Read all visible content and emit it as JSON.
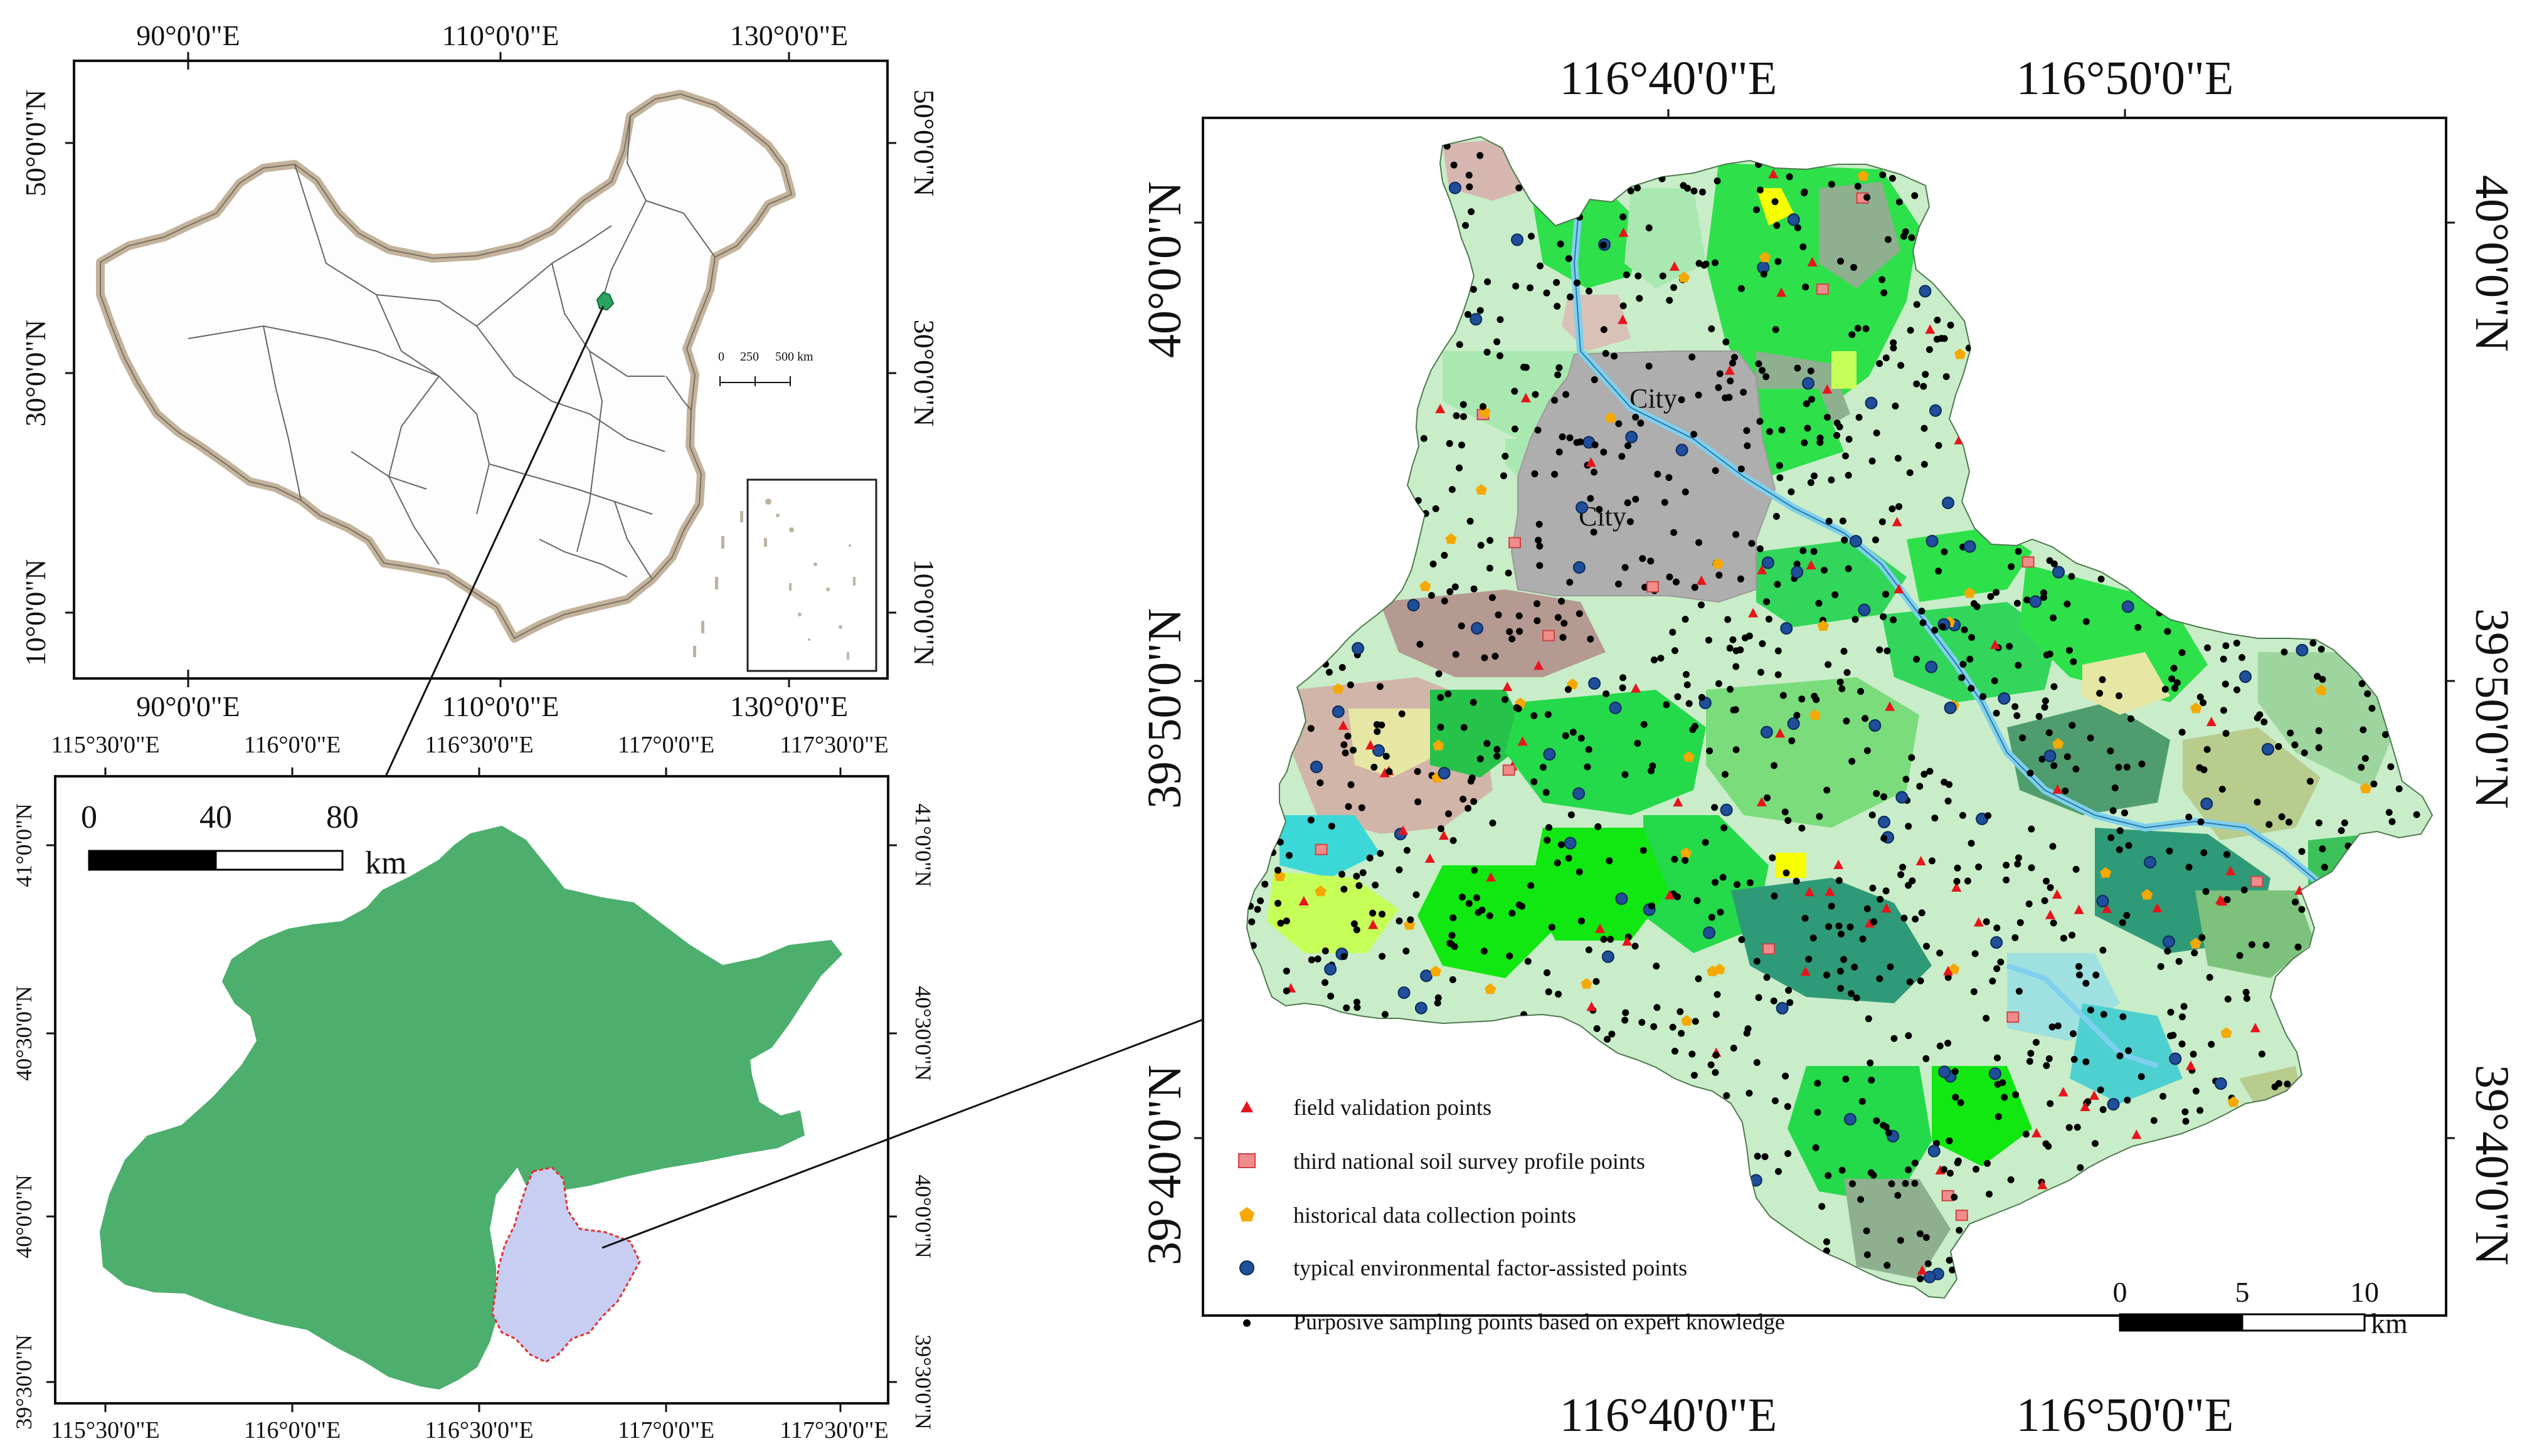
{
  "china_map": {
    "top_lon_labels": [
      "90°0'0\"E",
      "110°0'0\"E",
      "130°0'0\"E"
    ],
    "bottom_lon_labels": [
      "90°0'0\"E",
      "110°0'0\"E",
      "130°0'0\"E"
    ],
    "left_lat_labels": [
      "50°0'0\"N",
      "30°0'0\"N",
      "10°0'0\"N"
    ],
    "right_lat_labels": [
      "50°0'0\"N",
      "30°0'0\"N",
      "10°0'0\"N"
    ],
    "scale_ticks": [
      "0",
      "250",
      "500 km"
    ]
  },
  "beijing_map": {
    "top_lon_labels": [
      "115°30'0\"E",
      "116°0'0\"E",
      "116°30'0\"E",
      "117°0'0\"E",
      "117°30'0\"E"
    ],
    "bottom_lon_labels": [
      "115°30'0\"E",
      "116°0'0\"E",
      "116°30'0\"E",
      "117°0'0\"E",
      "117°30'0\"E"
    ],
    "left_lat_labels": [
      "41°0'0\"N",
      "40°30'0\"N",
      "40°0'0\"N",
      "39°30'0\"N"
    ],
    "right_lat_labels": [
      "41°0'0\"N",
      "40°30'0\"N",
      "40°0'0\"N",
      "39°30'0\"N"
    ],
    "scale_ticks": [
      "0",
      "40",
      "80"
    ],
    "scale_unit": "km"
  },
  "study_map": {
    "top_lon_labels": [
      "116°40'0\"E",
      "116°50'0\"E"
    ],
    "bottom_lon_labels": [
      "116°40'0\"E",
      "116°50'0\"E"
    ],
    "left_lat_labels": [
      "40°0'0\"N",
      "39°50'0\"N",
      "39°40'0\"N"
    ],
    "right_lat_labels": [
      "40°0'0\"N",
      "39°50'0\"N",
      "39°40'0\"N"
    ],
    "city_labels": [
      "City",
      "City"
    ],
    "scale_ticks": [
      "0",
      "5",
      "10"
    ],
    "scale_unit": "km",
    "legend": [
      {
        "label": "field validation points",
        "symbol": "triangle",
        "color": "#e8141b"
      },
      {
        "label": "third national soil survey profile points",
        "symbol": "square",
        "color": "#f08c8c"
      },
      {
        "label": "historical data collection points",
        "symbol": "pentagon",
        "color": "#f5a800"
      },
      {
        "label": "typical environmental factor-assisted points",
        "symbol": "circle",
        "color": "#1f4e9a"
      },
      {
        "label": "Purposive sampling points based on expert knowledge",
        "symbol": "dot",
        "color": "#000000"
      }
    ]
  },
  "colors": {
    "beijing_fill": "#4caf6e",
    "study_area_fill": "#c8cdf2",
    "city_fill": "#aeaeae",
    "river": "#7fd0ee"
  }
}
